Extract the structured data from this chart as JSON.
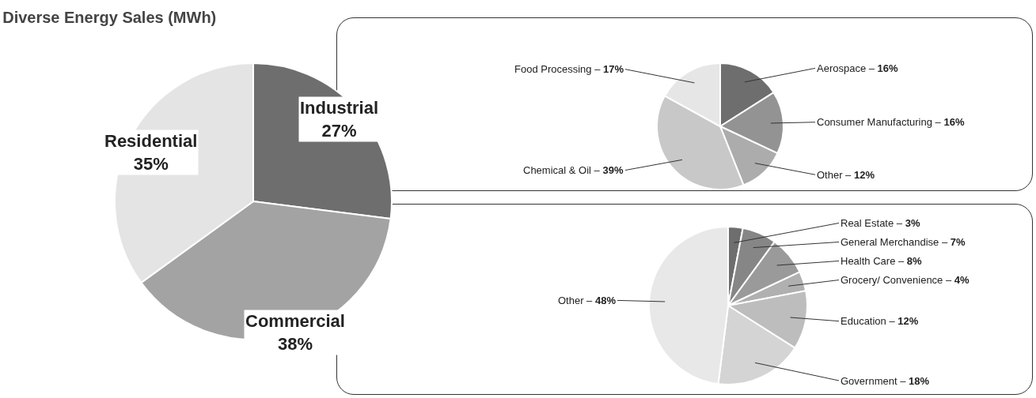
{
  "chart_data": [
    {
      "type": "pie",
      "title": "Diverse Energy Sales (MWh)",
      "categories": [
        "Industrial",
        "Commercial",
        "Residential"
      ],
      "values": [
        27,
        38,
        35
      ],
      "value_labels": [
        "27%",
        "38%",
        "35%"
      ],
      "colors": [
        "#6e6e6e",
        "#a3a3a3",
        "#e4e4e4"
      ],
      "legend": false
    },
    {
      "type": "pie",
      "categories": [
        "Aerospace –",
        "Consumer Manufacturing –",
        "Other –",
        "Chemical & Oil –",
        "Food Processing –"
      ],
      "values": [
        16,
        16,
        12,
        39,
        17
      ],
      "value_labels": [
        "16%",
        "16%",
        "12%",
        "39%",
        "17%"
      ],
      "colors": [
        "#6e6e6e",
        "#939393",
        "#acacac",
        "#c8c8c8",
        "#e6e6e6"
      ],
      "legend": false
    },
    {
      "type": "pie",
      "categories": [
        "Real Estate –",
        "General Merchandise –",
        "Health Care –",
        "Grocery/ Convenience –",
        "Education –",
        "Government –",
        "Other –"
      ],
      "values": [
        3,
        7,
        8,
        4,
        12,
        18,
        48
      ],
      "value_labels": [
        "3%",
        "7%",
        "8%",
        "4%",
        "12%",
        "18%",
        "48%"
      ],
      "colors": [
        "#6e6e6e",
        "#868686",
        "#9a9a9a",
        "#b0b0b0",
        "#bdbdbd",
        "#d4d4d4",
        "#e8e8e8"
      ],
      "legend": false
    }
  ]
}
